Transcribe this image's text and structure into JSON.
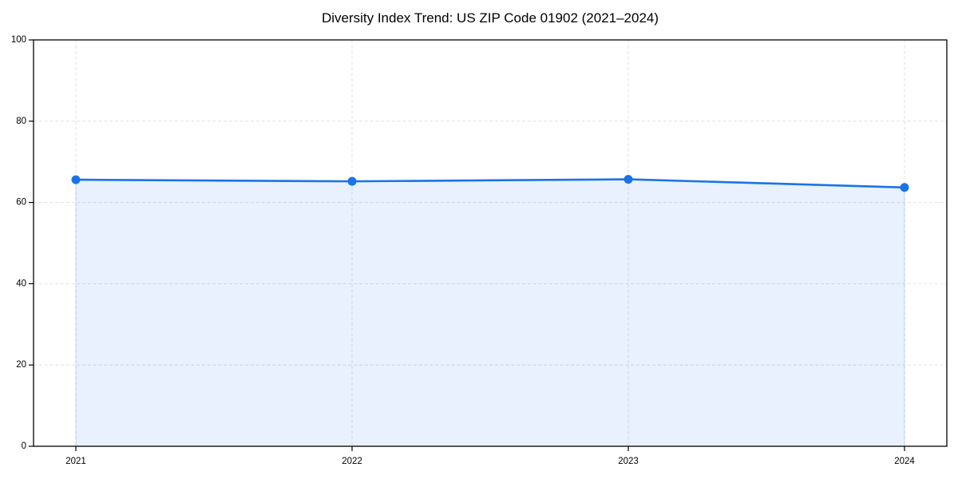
{
  "chart_data": {
    "type": "line",
    "title": "Diversity Index Trend: US ZIP Code 01902 (2021–2024)",
    "x": [
      2021,
      2022,
      2023,
      2024
    ],
    "xticks": [
      "2021",
      "2022",
      "2023",
      "2024"
    ],
    "series": [
      {
        "name": "Diversity Index",
        "values": [
          65.6,
          65.2,
          65.7,
          63.7
        ]
      }
    ],
    "xlabel": "",
    "ylabel": "",
    "ylim": [
      0,
      100
    ],
    "yticks": [
      0,
      20,
      40,
      60,
      80,
      100
    ],
    "grid": true,
    "grid_style": "dashed",
    "legend": false,
    "markers": true,
    "fill_area": true,
    "style": {
      "line_color": "#1a73e8",
      "marker_color": "#1a73e8",
      "fill_opacity": 0.1,
      "fill_edge_opacity": 0.18,
      "grid_color": "#e0e0e0",
      "axis_color": "#000000",
      "background": "#ffffff",
      "marker_radius": 5.5,
      "line_width": 2.6
    }
  }
}
